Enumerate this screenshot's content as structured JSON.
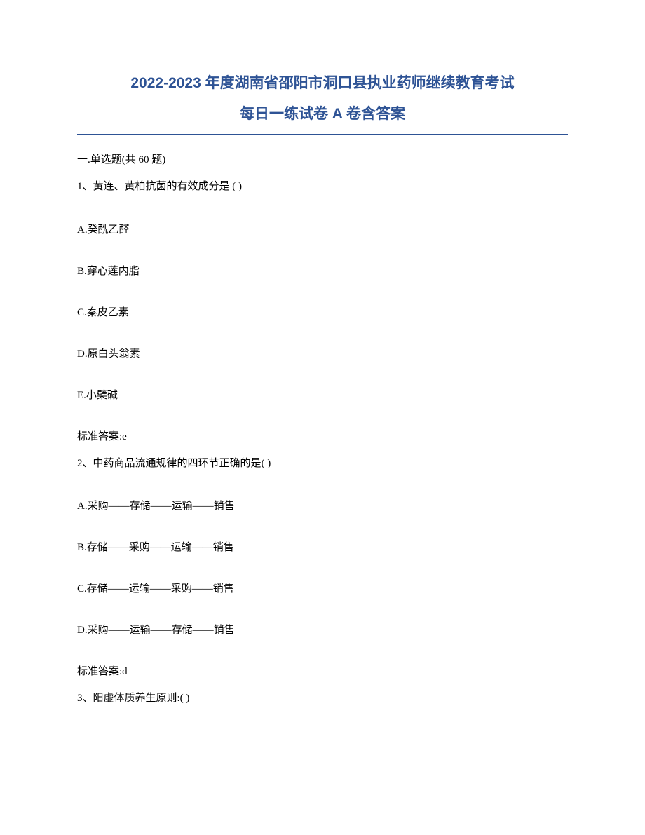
{
  "title_line1": "2022-2023 年度湖南省邵阳市洞口县执业药师继续教育考试",
  "title_line2": "每日一练试卷 A 卷含答案",
  "section_header": "一.单选题(共 60 题)",
  "questions": [
    {
      "prompt": "1、黄连、黄柏抗菌的有效成分是 ( )",
      "options": [
        "A.癸酰乙醛",
        "B.穿心莲内脂",
        "C.秦皮乙素",
        "D.原白头翁素",
        "E.小檗碱"
      ],
      "answer": "标准答案:e"
    },
    {
      "prompt": "2、中药商品流通规律的四环节正确的是( )",
      "options": [
        "A.采购——存储——运输——销售",
        "B.存储——采购——运输——销售",
        "C.存储——运输——采购——销售",
        "D.采购——运输——存储——销售"
      ],
      "answer": "标准答案:d"
    },
    {
      "prompt": "3、阳虚体质养生原则:( )",
      "options": [],
      "answer": ""
    }
  ]
}
